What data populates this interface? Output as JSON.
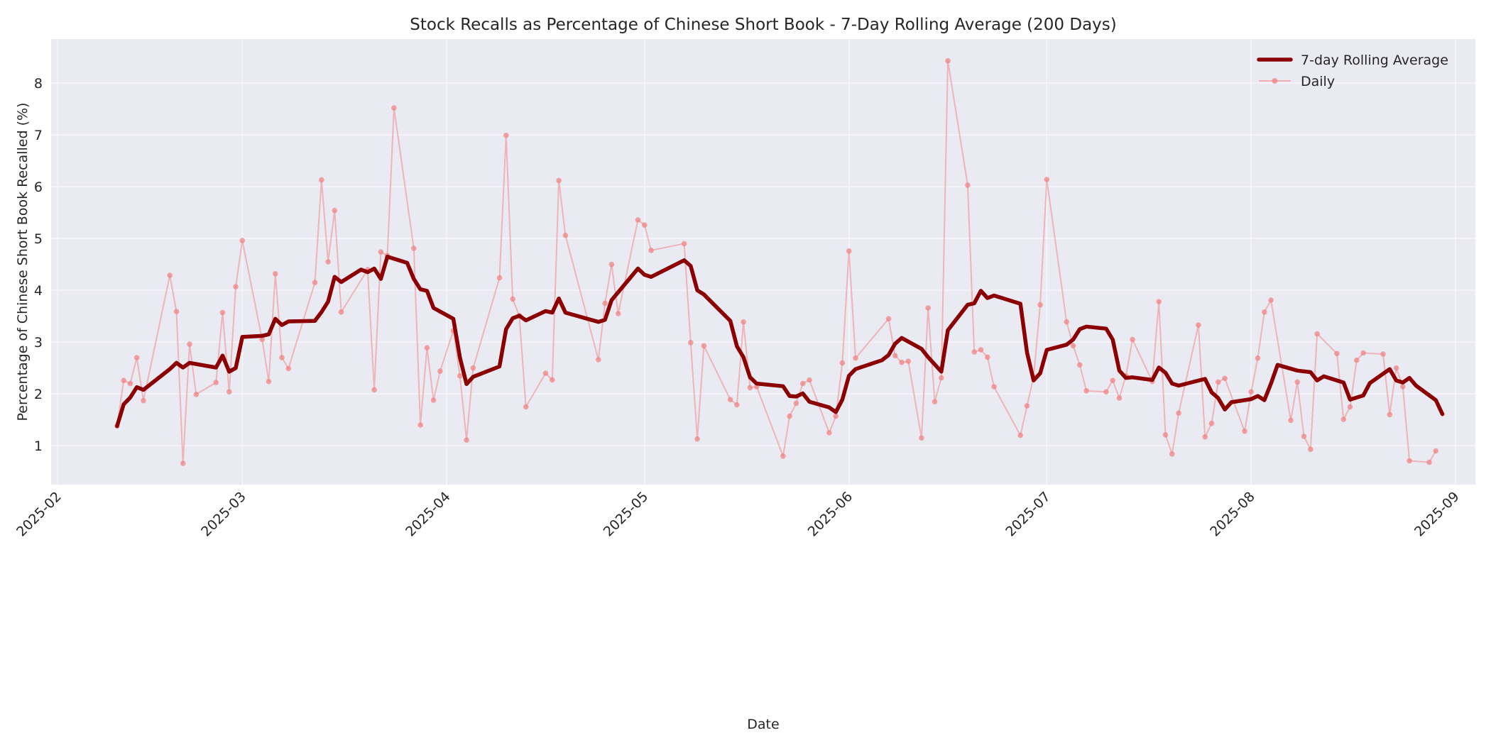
{
  "chart_data": {
    "type": "line",
    "title": "Stock Recalls as Percentage of Chinese Short Book - 7-Day Rolling Average (200 Days)",
    "xlabel": "Date",
    "ylabel": "Percentage of Chinese Short Book Recalled (%)",
    "x_ticks": [
      "2025-02",
      "2025-03",
      "2025-04",
      "2025-05",
      "2025-06",
      "2025-07",
      "2025-08",
      "2025-09"
    ],
    "y_ticks": [
      1,
      2,
      3,
      4,
      5,
      6,
      7,
      8
    ],
    "ylim": [
      0.25,
      8.85
    ],
    "xlim": [
      "2025-01-31",
      "2025-09-04"
    ],
    "grid": true,
    "legend_position": "upper right",
    "colors": {
      "background": "#eaeaf2",
      "grid": "#f5f5fa",
      "rolling": "#8b0000",
      "daily": "#f08080"
    },
    "series": [
      {
        "name": "7-day Rolling Average",
        "style": "thick-line",
        "points": [
          [
            "2025-02-10",
            1.38
          ],
          [
            "2025-02-11",
            1.8
          ],
          [
            "2025-02-12",
            1.93
          ],
          [
            "2025-02-13",
            2.13
          ],
          [
            "2025-02-14",
            2.08
          ],
          [
            "2025-02-18",
            2.48
          ],
          [
            "2025-02-19",
            2.6
          ],
          [
            "2025-02-20",
            2.51
          ],
          [
            "2025-02-21",
            2.6
          ],
          [
            "2025-02-25",
            2.51
          ],
          [
            "2025-02-26",
            2.74
          ],
          [
            "2025-02-27",
            2.43
          ],
          [
            "2025-02-28",
            2.5
          ],
          [
            "2025-03-01",
            3.1
          ],
          [
            "2025-03-04",
            3.12
          ],
          [
            "2025-03-05",
            3.15
          ],
          [
            "2025-03-06",
            3.45
          ],
          [
            "2025-03-07",
            3.33
          ],
          [
            "2025-03-08",
            3.4
          ],
          [
            "2025-03-12",
            3.41
          ],
          [
            "2025-03-13",
            3.58
          ],
          [
            "2025-03-14",
            3.78
          ],
          [
            "2025-03-15",
            4.26
          ],
          [
            "2025-03-16",
            4.16
          ],
          [
            "2025-03-19",
            4.4
          ],
          [
            "2025-03-20",
            4.35
          ],
          [
            "2025-03-21",
            4.42
          ],
          [
            "2025-03-22",
            4.22
          ],
          [
            "2025-03-23",
            4.65
          ],
          [
            "2025-03-26",
            4.53
          ],
          [
            "2025-03-27",
            4.22
          ],
          [
            "2025-03-28",
            4.02
          ],
          [
            "2025-03-29",
            3.99
          ],
          [
            "2025-03-30",
            3.66
          ],
          [
            "2025-04-02",
            3.45
          ],
          [
            "2025-04-03",
            2.7
          ],
          [
            "2025-04-04",
            2.19
          ],
          [
            "2025-04-05",
            2.33
          ],
          [
            "2025-04-09",
            2.53
          ],
          [
            "2025-04-10",
            3.25
          ],
          [
            "2025-04-11",
            3.46
          ],
          [
            "2025-04-12",
            3.51
          ],
          [
            "2025-04-13",
            3.42
          ],
          [
            "2025-04-16",
            3.6
          ],
          [
            "2025-04-17",
            3.57
          ],
          [
            "2025-04-18",
            3.84
          ],
          [
            "2025-04-19",
            3.57
          ],
          [
            "2025-04-24",
            3.39
          ],
          [
            "2025-04-25",
            3.43
          ],
          [
            "2025-04-26",
            3.81
          ],
          [
            "2025-04-30",
            4.42
          ],
          [
            "2025-05-01",
            4.3
          ],
          [
            "2025-05-02",
            4.26
          ],
          [
            "2025-05-07",
            4.58
          ],
          [
            "2025-05-08",
            4.47
          ],
          [
            "2025-05-09",
            4.0
          ],
          [
            "2025-05-10",
            3.92
          ],
          [
            "2025-05-14",
            3.41
          ],
          [
            "2025-05-15",
            2.92
          ],
          [
            "2025-05-16",
            2.71
          ],
          [
            "2025-05-17",
            2.32
          ],
          [
            "2025-05-18",
            2.2
          ],
          [
            "2025-05-22",
            2.15
          ],
          [
            "2025-05-23",
            1.96
          ],
          [
            "2025-05-24",
            1.95
          ],
          [
            "2025-05-25",
            2.01
          ],
          [
            "2025-05-26",
            1.85
          ],
          [
            "2025-05-29",
            1.74
          ],
          [
            "2025-05-30",
            1.65
          ],
          [
            "2025-05-31",
            1.89
          ],
          [
            "2025-06-01",
            2.35
          ],
          [
            "2025-06-02",
            2.48
          ],
          [
            "2025-06-06",
            2.65
          ],
          [
            "2025-06-07",
            2.75
          ],
          [
            "2025-06-08",
            2.97
          ],
          [
            "2025-06-09",
            3.08
          ],
          [
            "2025-06-12",
            2.87
          ],
          [
            "2025-06-13",
            2.71
          ],
          [
            "2025-06-15",
            2.43
          ],
          [
            "2025-06-16",
            3.23
          ],
          [
            "2025-06-19",
            3.72
          ],
          [
            "2025-06-20",
            3.75
          ],
          [
            "2025-06-21",
            3.99
          ],
          [
            "2025-06-22",
            3.85
          ],
          [
            "2025-06-23",
            3.9
          ],
          [
            "2025-06-27",
            3.74
          ],
          [
            "2025-06-28",
            2.8
          ],
          [
            "2025-06-29",
            2.26
          ],
          [
            "2025-06-30",
            2.4
          ],
          [
            "2025-07-01",
            2.85
          ],
          [
            "2025-07-04",
            2.95
          ],
          [
            "2025-07-05",
            3.05
          ],
          [
            "2025-07-06",
            3.25
          ],
          [
            "2025-07-07",
            3.3
          ],
          [
            "2025-07-10",
            3.26
          ],
          [
            "2025-07-11",
            3.05
          ],
          [
            "2025-07-12",
            2.45
          ],
          [
            "2025-07-13",
            2.31
          ],
          [
            "2025-07-14",
            2.32
          ],
          [
            "2025-07-17",
            2.27
          ],
          [
            "2025-07-18",
            2.51
          ],
          [
            "2025-07-19",
            2.41
          ],
          [
            "2025-07-20",
            2.2
          ],
          [
            "2025-07-21",
            2.16
          ],
          [
            "2025-07-25",
            2.29
          ],
          [
            "2025-07-26",
            2.03
          ],
          [
            "2025-07-27",
            1.92
          ],
          [
            "2025-07-28",
            1.7
          ],
          [
            "2025-07-29",
            1.84
          ],
          [
            "2025-08-01",
            1.9
          ],
          [
            "2025-08-02",
            1.96
          ],
          [
            "2025-08-03",
            1.88
          ],
          [
            "2025-08-04",
            2.2
          ],
          [
            "2025-08-05",
            2.56
          ],
          [
            "2025-08-08",
            2.45
          ],
          [
            "2025-08-10",
            2.42
          ],
          [
            "2025-08-11",
            2.26
          ],
          [
            "2025-08-12",
            2.34
          ],
          [
            "2025-08-15",
            2.22
          ],
          [
            "2025-08-16",
            1.89
          ],
          [
            "2025-08-18",
            1.97
          ],
          [
            "2025-08-19",
            2.21
          ],
          [
            "2025-08-22",
            2.48
          ],
          [
            "2025-08-23",
            2.26
          ],
          [
            "2025-08-24",
            2.22
          ],
          [
            "2025-08-25",
            2.31
          ],
          [
            "2025-08-26",
            2.16
          ],
          [
            "2025-08-29",
            1.88
          ],
          [
            "2025-08-30",
            1.61
          ]
        ]
      },
      {
        "name": "Daily",
        "style": "thin-line-with-markers",
        "points": [
          [
            "2025-02-10",
            1.38
          ],
          [
            "2025-02-11",
            2.26
          ],
          [
            "2025-02-12",
            2.2
          ],
          [
            "2025-02-13",
            2.7
          ],
          [
            "2025-02-14",
            1.87
          ],
          [
            "2025-02-18",
            4.29
          ],
          [
            "2025-02-19",
            3.59
          ],
          [
            "2025-02-20",
            0.66
          ],
          [
            "2025-02-21",
            2.96
          ],
          [
            "2025-02-22",
            1.99
          ],
          [
            "2025-02-25",
            2.22
          ],
          [
            "2025-02-26",
            3.57
          ],
          [
            "2025-02-27",
            2.04
          ],
          [
            "2025-02-28",
            4.07
          ],
          [
            "2025-03-01",
            4.96
          ],
          [
            "2025-03-04",
            3.05
          ],
          [
            "2025-03-05",
            2.24
          ],
          [
            "2025-03-06",
            4.32
          ],
          [
            "2025-03-07",
            2.7
          ],
          [
            "2025-03-08",
            2.49
          ],
          [
            "2025-03-12",
            4.15
          ],
          [
            "2025-03-13",
            6.13
          ],
          [
            "2025-03-14",
            4.55
          ],
          [
            "2025-03-15",
            5.54
          ],
          [
            "2025-03-16",
            3.58
          ],
          [
            "2025-03-20",
            4.4
          ],
          [
            "2025-03-21",
            2.08
          ],
          [
            "2025-03-22",
            4.74
          ],
          [
            "2025-03-23",
            4.67
          ],
          [
            "2025-03-24",
            7.52
          ],
          [
            "2025-03-27",
            4.81
          ],
          [
            "2025-03-28",
            1.4
          ],
          [
            "2025-03-29",
            2.89
          ],
          [
            "2025-03-30",
            1.88
          ],
          [
            "2025-03-31",
            2.44
          ],
          [
            "2025-04-02",
            3.22
          ],
          [
            "2025-04-03",
            2.35
          ],
          [
            "2025-04-04",
            1.11
          ],
          [
            "2025-04-05",
            2.5
          ],
          [
            "2025-04-09",
            4.24
          ],
          [
            "2025-04-10",
            6.99
          ],
          [
            "2025-04-11",
            3.83
          ],
          [
            "2025-04-12",
            3.51
          ],
          [
            "2025-04-13",
            1.75
          ],
          [
            "2025-04-16",
            2.4
          ],
          [
            "2025-04-17",
            2.27
          ],
          [
            "2025-04-18",
            6.12
          ],
          [
            "2025-04-19",
            5.06
          ],
          [
            "2025-04-24",
            2.66
          ],
          [
            "2025-04-25",
            3.75
          ],
          [
            "2025-04-26",
            4.5
          ],
          [
            "2025-04-27",
            3.55
          ],
          [
            "2025-04-30",
            5.36
          ],
          [
            "2025-05-01",
            5.26
          ],
          [
            "2025-05-02",
            4.77
          ],
          [
            "2025-05-07",
            4.9
          ],
          [
            "2025-05-08",
            2.99
          ],
          [
            "2025-05-09",
            1.13
          ],
          [
            "2025-05-10",
            2.93
          ],
          [
            "2025-05-14",
            1.89
          ],
          [
            "2025-05-15",
            1.79
          ],
          [
            "2025-05-16",
            3.39
          ],
          [
            "2025-05-17",
            2.12
          ],
          [
            "2025-05-18",
            2.14
          ],
          [
            "2025-05-22",
            0.8
          ],
          [
            "2025-05-23",
            1.57
          ],
          [
            "2025-05-24",
            1.82
          ],
          [
            "2025-05-25",
            2.2
          ],
          [
            "2025-05-26",
            2.27
          ],
          [
            "2025-05-29",
            1.25
          ],
          [
            "2025-05-30",
            1.57
          ],
          [
            "2025-05-31",
            2.6
          ],
          [
            "2025-06-01",
            4.76
          ],
          [
            "2025-06-02",
            2.69
          ],
          [
            "2025-06-07",
            3.45
          ],
          [
            "2025-06-08",
            2.74
          ],
          [
            "2025-06-09",
            2.61
          ],
          [
            "2025-06-10",
            2.63
          ],
          [
            "2025-06-12",
            1.15
          ],
          [
            "2025-06-13",
            3.66
          ],
          [
            "2025-06-14",
            1.85
          ],
          [
            "2025-06-15",
            2.31
          ],
          [
            "2025-06-16",
            8.43
          ],
          [
            "2025-06-19",
            6.03
          ],
          [
            "2025-06-20",
            2.81
          ],
          [
            "2025-06-21",
            2.85
          ],
          [
            "2025-06-22",
            2.71
          ],
          [
            "2025-06-23",
            2.14
          ],
          [
            "2025-06-27",
            1.2
          ],
          [
            "2025-06-28",
            1.77
          ],
          [
            "2025-06-29",
            2.33
          ],
          [
            "2025-06-30",
            3.72
          ],
          [
            "2025-07-01",
            6.14
          ],
          [
            "2025-07-04",
            3.39
          ],
          [
            "2025-07-05",
            2.93
          ],
          [
            "2025-07-06",
            2.56
          ],
          [
            "2025-07-07",
            2.06
          ],
          [
            "2025-07-10",
            2.04
          ],
          [
            "2025-07-11",
            2.26
          ],
          [
            "2025-07-12",
            1.92
          ],
          [
            "2025-07-13",
            2.35
          ],
          [
            "2025-07-14",
            3.05
          ],
          [
            "2025-07-17",
            2.24
          ],
          [
            "2025-07-18",
            3.78
          ],
          [
            "2025-07-19",
            1.21
          ],
          [
            "2025-07-20",
            0.84
          ],
          [
            "2025-07-21",
            1.63
          ],
          [
            "2025-07-24",
            3.33
          ],
          [
            "2025-07-25",
            1.17
          ],
          [
            "2025-07-26",
            1.43
          ],
          [
            "2025-07-27",
            2.23
          ],
          [
            "2025-07-28",
            2.3
          ],
          [
            "2025-07-31",
            1.28
          ],
          [
            "2025-08-01",
            2.04
          ],
          [
            "2025-08-02",
            2.69
          ],
          [
            "2025-08-03",
            3.58
          ],
          [
            "2025-08-04",
            3.81
          ],
          [
            "2025-08-07",
            1.49
          ],
          [
            "2025-08-08",
            2.23
          ],
          [
            "2025-08-09",
            1.18
          ],
          [
            "2025-08-10",
            0.93
          ],
          [
            "2025-08-11",
            3.16
          ],
          [
            "2025-08-14",
            2.78
          ],
          [
            "2025-08-15",
            1.51
          ],
          [
            "2025-08-16",
            1.75
          ],
          [
            "2025-08-17",
            2.65
          ],
          [
            "2025-08-18",
            2.79
          ],
          [
            "2025-08-21",
            2.77
          ],
          [
            "2025-08-22",
            1.6
          ],
          [
            "2025-08-23",
            2.5
          ],
          [
            "2025-08-24",
            2.14
          ],
          [
            "2025-08-25",
            0.71
          ],
          [
            "2025-08-28",
            0.68
          ],
          [
            "2025-08-29",
            0.9
          ]
        ]
      }
    ]
  },
  "legend": {
    "items": [
      {
        "label": "7-day Rolling Average"
      },
      {
        "label": "Daily"
      }
    ]
  }
}
